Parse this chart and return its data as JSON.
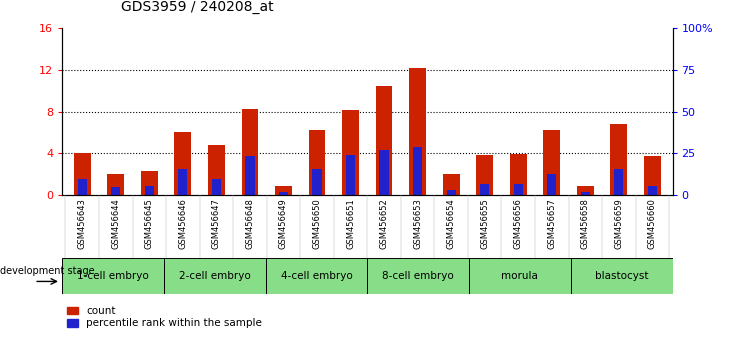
{
  "title": "GDS3959 / 240208_at",
  "samples": [
    "GSM456643",
    "GSM456644",
    "GSM456645",
    "GSM456646",
    "GSM456647",
    "GSM456648",
    "GSM456649",
    "GSM456650",
    "GSM456651",
    "GSM456652",
    "GSM456653",
    "GSM456654",
    "GSM456655",
    "GSM456656",
    "GSM456657",
    "GSM456658",
    "GSM456659",
    "GSM456660"
  ],
  "count_values": [
    4.0,
    2.0,
    2.3,
    6.0,
    4.8,
    8.2,
    0.8,
    6.2,
    8.1,
    10.5,
    12.2,
    2.0,
    3.8,
    3.9,
    6.2,
    0.8,
    6.8,
    3.7
  ],
  "percentile_values": [
    1.5,
    0.7,
    0.8,
    2.5,
    1.5,
    3.7,
    0.3,
    2.5,
    3.8,
    4.3,
    4.6,
    0.5,
    1.0,
    1.0,
    2.0,
    0.3,
    2.5,
    0.8
  ],
  "stages": [
    {
      "label": "1-cell embryo",
      "start": 0,
      "end": 3
    },
    {
      "label": "2-cell embryo",
      "start": 3,
      "end": 6
    },
    {
      "label": "4-cell embryo",
      "start": 6,
      "end": 9
    },
    {
      "label": "8-cell embryo",
      "start": 9,
      "end": 12
    },
    {
      "label": "morula",
      "start": 12,
      "end": 15
    },
    {
      "label": "blastocyst",
      "start": 15,
      "end": 18
    }
  ],
  "bar_color": "#cc2200",
  "pct_color": "#2222cc",
  "stage_bg_color": "#88dd88",
  "ylim_left": [
    0,
    16
  ],
  "ylim_right": [
    0,
    100
  ],
  "yticks_left": [
    0,
    4,
    8,
    12,
    16
  ],
  "yticks_right": [
    0,
    25,
    50,
    75,
    100
  ],
  "title_fontsize": 10,
  "bar_width": 0.5,
  "background_color": "#ffffff",
  "plot_bg_color": "#ffffff",
  "sample_area_bg": "#cccccc"
}
